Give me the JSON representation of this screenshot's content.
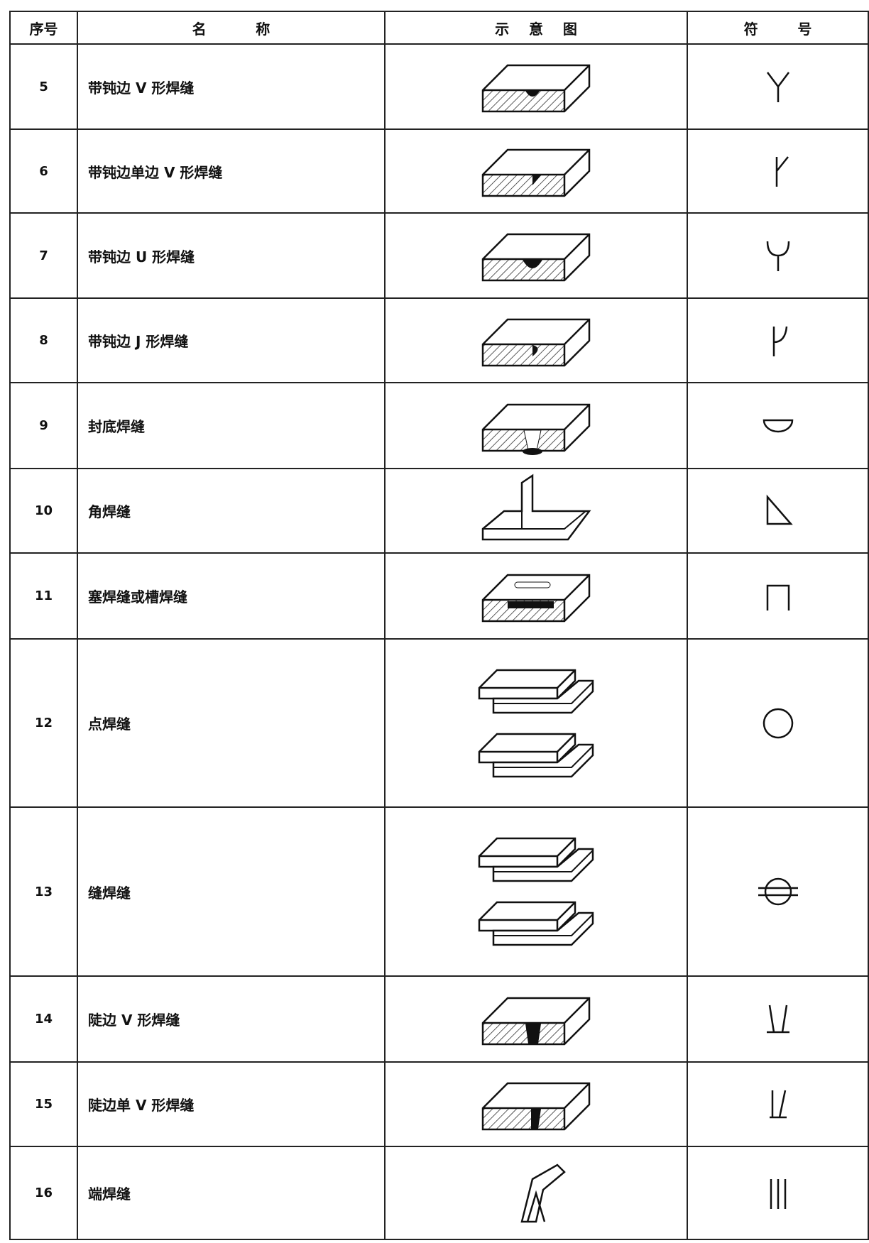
{
  "table": {
    "header": [
      "序号",
      "名          称",
      "示    意    图",
      "符        号"
    ],
    "rows": [
      [
        5,
        "带钝边 V 形焊缝"
      ],
      [
        6,
        "带钝边单边 V 形焊缝"
      ],
      [
        7,
        "带钝边 U 形焊缝"
      ],
      [
        8,
        "带钝边 J 形焊缝"
      ],
      [
        9,
        "封底焊缝"
      ],
      [
        10,
        "角焊缝"
      ],
      [
        11,
        "塞焊缝或槽焊缝"
      ],
      [
        12,
        "点焊缝"
      ],
      [
        13,
        "缝焊缝"
      ],
      [
        14,
        "陡边 V 形焊缝"
      ],
      [
        15,
        "陡边单 V 形焊缝"
      ],
      [
        16,
        "端焊缝"
      ]
    ]
  }
}
